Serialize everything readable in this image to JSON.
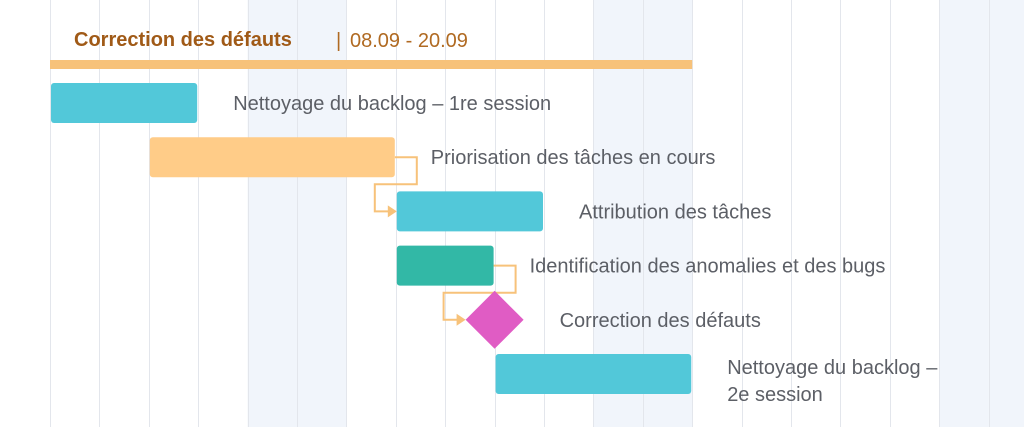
{
  "chart_data": {
    "type": "gantt",
    "group": {
      "name": "Correction des défauts",
      "dates": "08.09 - 20.09",
      "start": 0,
      "end": 13,
      "color": "#f7c27a",
      "title_color": "#a05a17",
      "dates_color": "#b06a22"
    },
    "tasks": [
      {
        "name": "Nettoyage du backlog – 1re session",
        "lines": [
          "Nettoyage du backlog – 1re session"
        ],
        "start": 0,
        "end": 3,
        "kind": "bar",
        "color": "#52c8d9"
      },
      {
        "name": "Priorisation des tâches en cours",
        "lines": [
          "Priorisation des tâches en cours"
        ],
        "start": 2,
        "end": 7,
        "kind": "bar",
        "color": "#ffcc88"
      },
      {
        "name": "Attribution des tâches",
        "lines": [
          "Attribution des tâches"
        ],
        "start": 7,
        "end": 10,
        "kind": "bar",
        "color": "#52c8d9"
      },
      {
        "name": "Identification des anomalies et des bugs",
        "lines": [
          "Identification des anomalies et des bugs"
        ],
        "start": 7,
        "end": 9,
        "kind": "bar",
        "color": "#32b8a6"
      },
      {
        "name": "Correction des défauts",
        "lines": [
          "Correction des défauts"
        ],
        "start": 9,
        "end": 9,
        "kind": "milestone",
        "color": "#e05cc4"
      },
      {
        "name": "Nettoyage du backlog – 2e session",
        "lines": [
          "Nettoyage du backlog –",
          "2e session"
        ],
        "start": 9,
        "end": 13,
        "kind": "bar",
        "color": "#52c8d9"
      }
    ],
    "dependencies": [
      {
        "from": 1,
        "to": 2
      },
      {
        "from": 3,
        "to": 4
      }
    ],
    "dependency_color": "#f7c27a",
    "weekend_shade": "#f1f5fb",
    "columns": 20,
    "shaded_columns": [
      4,
      5,
      11,
      12,
      18,
      19
    ],
    "grid": true
  }
}
